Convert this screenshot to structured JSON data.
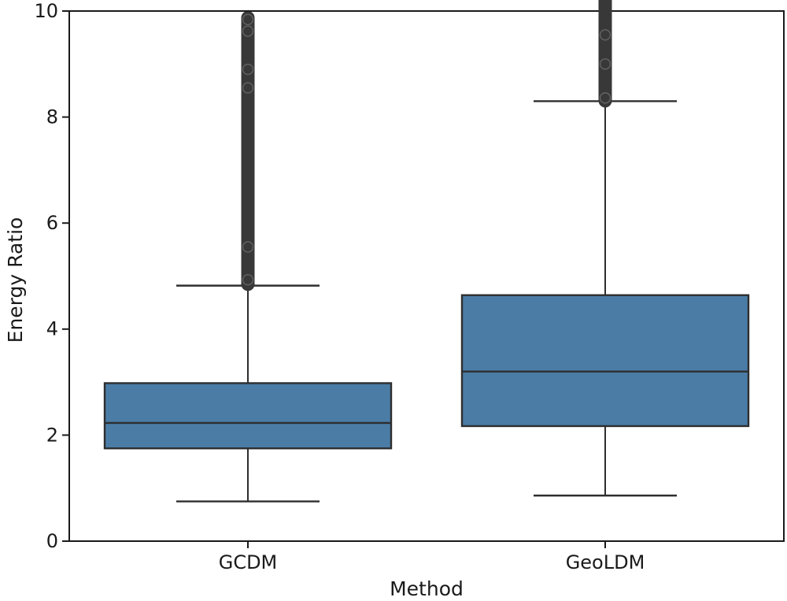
{
  "figure": {
    "background": "#ffffff"
  },
  "chart_data": {
    "type": "box",
    "title": "",
    "xlabel": "Method",
    "ylabel": "Energy Ratio",
    "categories": [
      "GCDM",
      "GeoLDM"
    ],
    "ylim": [
      0,
      10
    ],
    "yticks": [
      0,
      2,
      4,
      6,
      8,
      10
    ],
    "ytick_labels": [
      "0",
      "2",
      "4",
      "6",
      "8",
      "10"
    ],
    "grid": false,
    "legend": null,
    "series": [
      {
        "name": "GCDM",
        "whisker_low": 0.75,
        "q1": 1.75,
        "median": 2.23,
        "q3": 2.98,
        "whisker_high": 4.82,
        "outliers_extent": [
          4.72,
          10.0
        ],
        "outliers_clipped_at_top": false
      },
      {
        "name": "GeoLDM",
        "whisker_low": 0.86,
        "q1": 2.17,
        "median": 3.2,
        "q3": 4.64,
        "whisker_high": 8.3,
        "outliers_extent": [
          8.18,
          10.3
        ],
        "outliers_clipped_at_top": true
      }
    ],
    "colors": {
      "box_fill": "#4a7ca6",
      "box_edge": "#2e2e2e",
      "whisker": "#2e2e2e",
      "median": "#2e2e2e",
      "outlier": "#383838",
      "spine": "#1a1a1a",
      "tick_label": "#1a1a1a"
    }
  }
}
